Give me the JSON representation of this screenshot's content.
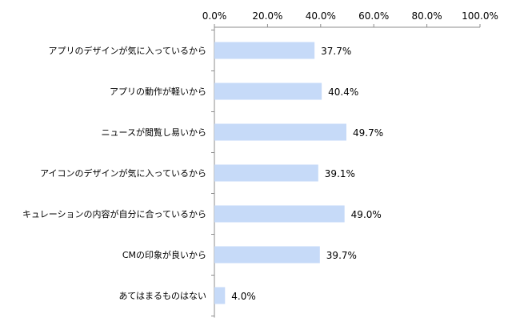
{
  "chart_data": {
    "type": "bar",
    "orientation": "horizontal",
    "categories": [
      "アプリのデザインが気に入っているから",
      "アプリの動作が軽いから",
      "ニュースが閲覧し易いから",
      "アイコンのデザインが気に入っているから",
      "キュレーションの内容が自分に合っているから",
      "CMの印象が良いから",
      "あてはまるものはない"
    ],
    "values": [
      37.7,
      40.4,
      49.7,
      39.1,
      49.0,
      39.7,
      4.0
    ],
    "value_labels": [
      "37.7%",
      "40.4%",
      "49.7%",
      "39.1%",
      "49.0%",
      "39.7%",
      "4.0%"
    ],
    "x_ticks": [
      0,
      20,
      40,
      60,
      80,
      100
    ],
    "x_tick_labels": [
      "0.0%",
      "20.0%",
      "40.0%",
      "60.0%",
      "80.0%",
      "100.0%"
    ],
    "xlim": [
      0,
      100
    ],
    "axis_position": "top",
    "grid": false,
    "title": "",
    "xlabel": "",
    "ylabel": "",
    "bar_color": "#c6daf8",
    "axis_color": "#8c8c8c"
  }
}
